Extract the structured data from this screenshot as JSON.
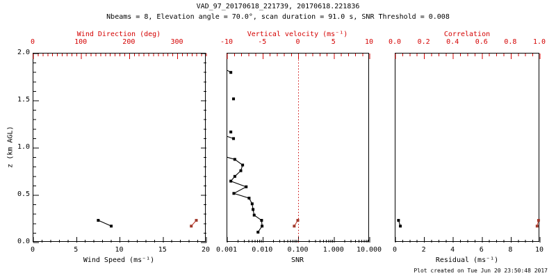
{
  "title": "VAD_97_20170618_221739, 20170618.221836",
  "subtitle": "Nbeams = 8, Elevation angle = 70.0°, scan duration = 91.0 s, SNR Threshold = 0.008",
  "footer": "Plot created on Tue Jun 20 23:50:48 2017",
  "colors": {
    "axis_red": "#d40000",
    "reference_line_red": "#cc0000",
    "data_red_marker": "#a03a2c",
    "data_red_line": "#c3392b",
    "data_black": "#000000"
  },
  "chart_data": [
    {
      "type": "scatter",
      "name": "wind-panel",
      "left_axis": {
        "label": "z (km AGL)",
        "range": [
          0,
          2
        ],
        "ticks": [
          {
            "v": 0,
            "t": "0.0"
          },
          {
            "v": 0.5,
            "t": "0.5"
          },
          {
            "v": 1,
            "t": "1.0"
          },
          {
            "v": 1.5,
            "t": "1.5"
          },
          {
            "v": 2,
            "t": "2.0"
          }
        ],
        "minor_step": 0.1
      },
      "bottom_axis": {
        "label": "Wind Speed (ms⁻¹)",
        "scale": "linear",
        "range": [
          0,
          20
        ],
        "ticks": [
          {
            "v": 0,
            "t": "0"
          },
          {
            "v": 5,
            "t": "5"
          },
          {
            "v": 10,
            "t": "10"
          },
          {
            "v": 15,
            "t": "15"
          },
          {
            "v": 20,
            "t": "20"
          }
        ],
        "minor_step": 1
      },
      "top_axis": {
        "label": "Wind Direction (deg)",
        "scale": "linear",
        "range": [
          0,
          360
        ],
        "ticks": [
          {
            "v": 0,
            "t": "0"
          },
          {
            "v": 100,
            "t": "100"
          },
          {
            "v": 200,
            "t": "200"
          },
          {
            "v": 300,
            "t": "300"
          }
        ],
        "minor_step": 10
      },
      "series": [
        {
          "name": "wind-speed",
          "axis": "bottom",
          "color": "black",
          "connect": "all",
          "points": [
            {
              "x": 7.5,
              "z": 0.235
            },
            {
              "x": 9.0,
              "z": 0.174
            }
          ]
        },
        {
          "name": "wind-direction",
          "axis": "top",
          "color": "red",
          "connect": "all",
          "points": [
            {
              "x": 328.5,
              "z": 0.174
            },
            {
              "x": 339,
              "z": 0.235
            }
          ]
        }
      ]
    },
    {
      "type": "scatter",
      "name": "snr-panel",
      "bottom_axis": {
        "label": "SNR",
        "scale": "log",
        "range": [
          0.001,
          10
        ],
        "ticks": [
          {
            "v": 0.001,
            "t": "0.001"
          },
          {
            "v": 0.01,
            "t": "0.010"
          },
          {
            "v": 0.1,
            "t": "0.100"
          },
          {
            "v": 1,
            "t": "1.000"
          },
          {
            "v": 10,
            "t": "10.000"
          }
        ]
      },
      "top_axis": {
        "label": "Vertical velocity (ms⁻¹)",
        "scale": "linear",
        "range": [
          -10,
          10
        ],
        "ticks": [
          {
            "v": -10,
            "t": "-10"
          },
          {
            "v": -5,
            "t": "-5"
          },
          {
            "v": 0,
            "t": "0"
          },
          {
            "v": 5,
            "t": "5"
          },
          {
            "v": 10,
            "t": "10"
          }
        ],
        "minor_step": 1
      },
      "reference_line": {
        "axis": "top",
        "value": 0,
        "style": "dotted"
      },
      "series": [
        {
          "name": "snr-profile",
          "axis": "bottom",
          "color": "black",
          "connect": "from:4",
          "stubs": [
            0,
            3,
            4
          ],
          "points": [
            {
              "x": 0.00126,
              "z": 1.8
            },
            {
              "x": 0.0015,
              "z": 1.52
            },
            {
              "x": 0.00126,
              "z": 1.17
            },
            {
              "x": 0.0015,
              "z": 1.1
            },
            {
              "x": 0.00163,
              "z": 0.88
            },
            {
              "x": 0.0027,
              "z": 0.82
            },
            {
              "x": 0.0024,
              "z": 0.76
            },
            {
              "x": 0.00163,
              "z": 0.7
            },
            {
              "x": 0.00126,
              "z": 0.65
            },
            {
              "x": 0.0034,
              "z": 0.59
            },
            {
              "x": 0.00153,
              "z": 0.52
            },
            {
              "x": 0.0041,
              "z": 0.47
            },
            {
              "x": 0.005,
              "z": 0.41
            },
            {
              "x": 0.0053,
              "z": 0.35
            },
            {
              "x": 0.0057,
              "z": 0.29
            },
            {
              "x": 0.0092,
              "z": 0.235
            },
            {
              "x": 0.0095,
              "z": 0.174
            },
            {
              "x": 0.0073,
              "z": 0.11
            }
          ]
        },
        {
          "name": "vertical-velocity",
          "axis": "top",
          "color": "red",
          "connect": "all",
          "points": [
            {
              "x": -0.6,
              "z": 0.174
            },
            {
              "x": -0.1,
              "z": 0.235
            }
          ]
        }
      ]
    },
    {
      "type": "scatter",
      "name": "residual-panel",
      "bottom_axis": {
        "label": "Residual (ms⁻¹)",
        "scale": "linear",
        "range": [
          0,
          10
        ],
        "ticks": [
          {
            "v": 0,
            "t": "0"
          },
          {
            "v": 2,
            "t": "2"
          },
          {
            "v": 4,
            "t": "4"
          },
          {
            "v": 6,
            "t": "6"
          },
          {
            "v": 8,
            "t": "8"
          },
          {
            "v": 10,
            "t": "10"
          }
        ],
        "minor_step": 0.5
      },
      "top_axis": {
        "label": "Correlation",
        "scale": "linear",
        "range": [
          0,
          1
        ],
        "ticks": [
          {
            "v": 0,
            "t": "0.0"
          },
          {
            "v": 0.2,
            "t": "0.2"
          },
          {
            "v": 0.4,
            "t": "0.4"
          },
          {
            "v": 0.6,
            "t": "0.6"
          },
          {
            "v": 0.8,
            "t": "0.8"
          },
          {
            "v": 1,
            "t": "1.0"
          }
        ],
        "minor_step": 0.05
      },
      "series": [
        {
          "name": "residual",
          "axis": "bottom",
          "color": "black",
          "connect": "all",
          "points": [
            {
              "x": 0.21,
              "z": 0.235
            },
            {
              "x": 0.34,
              "z": 0.174
            }
          ]
        },
        {
          "name": "correlation",
          "axis": "top",
          "color": "red",
          "connect": "all",
          "points": [
            {
              "x": 0.99,
              "z": 0.235
            },
            {
              "x": 0.98,
              "z": 0.174
            }
          ]
        }
      ]
    }
  ]
}
